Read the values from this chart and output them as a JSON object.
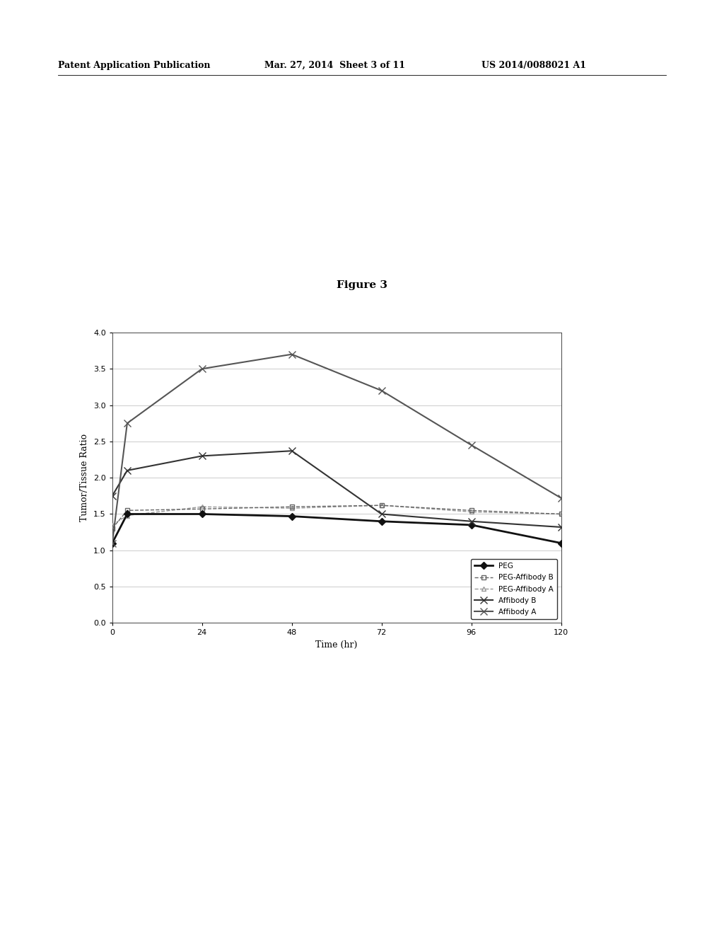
{
  "title": "Figure 3",
  "xlabel": "Time (hr)",
  "ylabel": "Tumor/Tissue Ratio",
  "header_left": "Patent Application Publication",
  "header_mid": "Mar. 27, 2014  Sheet 3 of 11",
  "header_right": "US 2014/0088021 A1",
  "xlim": [
    0,
    120
  ],
  "ylim": [
    0,
    4
  ],
  "xticks": [
    0,
    24,
    48,
    72,
    96,
    120
  ],
  "yticks": [
    0,
    0.5,
    1,
    1.5,
    2,
    2.5,
    3,
    3.5,
    4
  ],
  "series": {
    "PEG": {
      "x": [
        0,
        4,
        24,
        48,
        72,
        96,
        120
      ],
      "y": [
        1.1,
        1.5,
        1.5,
        1.47,
        1.4,
        1.35,
        1.1
      ],
      "color": "#111111",
      "linewidth": 2.0,
      "linestyle": "-",
      "zorder": 5
    },
    "PEG-Affibody B": {
      "x": [
        0,
        4,
        24,
        48,
        72,
        96,
        120
      ],
      "y": [
        1.3,
        1.55,
        1.57,
        1.6,
        1.62,
        1.55,
        1.5
      ],
      "color": "#666666",
      "linewidth": 1.0,
      "linestyle": "--",
      "zorder": 4
    },
    "PEG-Affibody A": {
      "x": [
        0,
        4,
        24,
        48,
        72,
        96,
        120
      ],
      "y": [
        1.35,
        1.48,
        1.6,
        1.58,
        1.62,
        1.53,
        1.5
      ],
      "color": "#999999",
      "linewidth": 1.0,
      "linestyle": "--",
      "zorder": 3
    },
    "Affibody B": {
      "x": [
        0,
        4,
        24,
        48,
        72,
        96,
        120
      ],
      "y": [
        1.75,
        2.1,
        2.3,
        2.37,
        1.5,
        1.4,
        1.32
      ],
      "color": "#333333",
      "linewidth": 1.5,
      "linestyle": "-",
      "zorder": 6
    },
    "Affibody A": {
      "x": [
        0,
        4,
        24,
        48,
        72,
        96,
        120
      ],
      "y": [
        1.1,
        2.75,
        3.5,
        3.7,
        3.2,
        2.45,
        1.72
      ],
      "color": "#555555",
      "linewidth": 1.5,
      "linestyle": "-",
      "zorder": 7
    }
  },
  "marker_styles": {
    "PEG": {
      "marker": "D",
      "ms": 5,
      "mfc": "#111111",
      "mec": "#111111"
    },
    "PEG-Affibody B": {
      "marker": "s",
      "ms": 5,
      "mfc": "none",
      "mec": "#666666"
    },
    "PEG-Affibody A": {
      "marker": "^",
      "ms": 5,
      "mfc": "none",
      "mec": "#999999"
    },
    "Affibody B": {
      "marker": "x",
      "ms": 7,
      "mfc": "#333333",
      "mec": "#333333"
    },
    "Affibody A": {
      "marker": "x",
      "ms": 7,
      "mfc": "#555555",
      "mec": "#555555"
    }
  },
  "background_color": "#ffffff",
  "grid_color": "#cccccc",
  "figure_width": 10.24,
  "figure_height": 13.2
}
